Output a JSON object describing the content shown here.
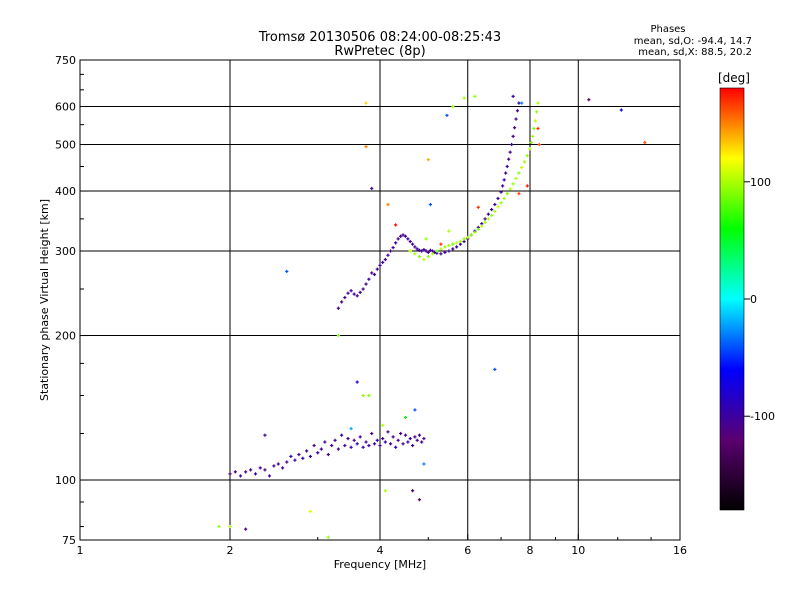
{
  "chart_data": {
    "type": "scatter",
    "title": "Tromsø 20130506 08:24:00-08:25:43",
    "subtitle": "RwPretec (8p)",
    "stats": {
      "heading": "Phases",
      "line_o": "mean, sd,O: -94.4, 14.7",
      "line_x": "mean, sd,X:  88.5, 20.2"
    },
    "xlabel": "Frequency [MHz]",
    "ylabel": "Stationary phase Virtual Height [km]",
    "x_scale": "log",
    "y_scale": "log",
    "xlim": [
      1,
      16
    ],
    "ylim": [
      75,
      750
    ],
    "x_ticks": [
      {
        "value": 1,
        "label": "1"
      },
      {
        "value": 2,
        "label": "2"
      },
      {
        "value": 4,
        "label": "4"
      },
      {
        "value": 6,
        "label": "6"
      },
      {
        "value": 8,
        "label": "8"
      },
      {
        "value": 10,
        "label": "10"
      },
      {
        "value": 16,
        "label": "16"
      }
    ],
    "y_ticks": [
      {
        "value": 75,
        "label": "75"
      },
      {
        "value": 100,
        "label": "100"
      },
      {
        "value": 200,
        "label": "200"
      },
      {
        "value": 300,
        "label": "300"
      },
      {
        "value": 400,
        "label": "400"
      },
      {
        "value": 500,
        "label": "500"
      },
      {
        "value": 600,
        "label": "600"
      },
      {
        "value": 750,
        "label": "750"
      }
    ],
    "grid": true,
    "colorbar": {
      "label": "[deg]",
      "range": [
        -180,
        180
      ],
      "ticks": [
        {
          "value": 100,
          "label": "100"
        },
        {
          "value": 0,
          "label": "0"
        },
        {
          "value": -100,
          "label": "-100"
        }
      ],
      "stops": [
        "#000000",
        "#5a0070",
        "#0000ff",
        "#00ffff",
        "#00ff00",
        "#ffff00",
        "#ff0000"
      ]
    },
    "series": [
      {
        "values": [
          [
            2.0,
            103,
            -110
          ],
          [
            2.05,
            104,
            -105
          ],
          [
            2.1,
            102,
            -100
          ],
          [
            2.15,
            104,
            -112
          ],
          [
            2.2,
            105,
            -108
          ],
          [
            2.25,
            103,
            -95
          ],
          [
            2.3,
            106,
            -104
          ],
          [
            2.35,
            105,
            -110
          ],
          [
            2.4,
            102,
            -101
          ],
          [
            2.45,
            107,
            -106
          ],
          [
            2.5,
            108,
            -98
          ],
          [
            2.55,
            106,
            -103
          ],
          [
            2.6,
            109,
            -110
          ],
          [
            2.65,
            112,
            -88
          ],
          [
            2.7,
            110,
            -102
          ],
          [
            2.75,
            113,
            -107
          ],
          [
            2.8,
            111,
            -95
          ],
          [
            2.85,
            115,
            -105
          ],
          [
            2.9,
            112,
            -100
          ],
          [
            2.95,
            118,
            -110
          ],
          [
            3.0,
            114,
            -92
          ],
          [
            3.05,
            116,
            -104
          ],
          [
            3.1,
            120,
            -101
          ],
          [
            3.15,
            113,
            -108
          ],
          [
            3.2,
            118,
            -99
          ],
          [
            3.25,
            121,
            -106
          ],
          [
            3.3,
            116,
            -103
          ],
          [
            3.35,
            124,
            -95
          ],
          [
            3.4,
            118,
            -110
          ],
          [
            3.45,
            122,
            -105
          ],
          [
            3.5,
            117,
            -100
          ],
          [
            3.55,
            121,
            -108
          ],
          [
            3.6,
            119,
            -97
          ],
          [
            3.65,
            123,
            -104
          ],
          [
            3.7,
            117,
            -101
          ],
          [
            3.75,
            120,
            -109
          ],
          [
            3.8,
            118,
            -99
          ],
          [
            3.85,
            125,
            -106
          ],
          [
            3.9,
            119,
            -102
          ],
          [
            3.95,
            121,
            -95
          ],
          [
            4.0,
            118,
            -107
          ],
          [
            4.05,
            122,
            -104
          ],
          [
            4.1,
            120,
            -99
          ],
          [
            4.15,
            126,
            -108
          ],
          [
            4.2,
            119,
            -101
          ],
          [
            4.25,
            123,
            -105
          ],
          [
            4.3,
            117,
            -96
          ],
          [
            4.35,
            121,
            -103
          ],
          [
            4.4,
            125,
            -109
          ],
          [
            4.45,
            119,
            -100
          ],
          [
            4.5,
            124,
            -106
          ],
          [
            4.55,
            120,
            -102
          ],
          [
            4.6,
            122,
            -94
          ],
          [
            4.65,
            118,
            -107
          ],
          [
            4.7,
            123,
            -104
          ],
          [
            4.75,
            121,
            -110
          ],
          [
            4.8,
            124,
            -99
          ],
          [
            4.85,
            120,
            -103
          ],
          [
            4.9,
            122,
            -108
          ]
        ]
      },
      {
        "values": [
          [
            3.3,
            228,
            -105
          ],
          [
            3.35,
            235,
            -110
          ],
          [
            3.4,
            240,
            -100
          ],
          [
            3.45,
            245,
            -108
          ],
          [
            3.5,
            248,
            -103
          ],
          [
            3.55,
            244,
            -96
          ],
          [
            3.6,
            242,
            -107
          ],
          [
            3.65,
            246,
            -101
          ],
          [
            3.7,
            250,
            -110
          ],
          [
            3.75,
            256,
            -104
          ],
          [
            3.8,
            262,
            -99
          ],
          [
            3.85,
            270,
            -106
          ],
          [
            3.9,
            268,
            -101
          ],
          [
            3.95,
            275,
            -108
          ],
          [
            4.0,
            280,
            -103
          ],
          [
            4.05,
            284,
            -97
          ],
          [
            4.1,
            288,
            -105
          ],
          [
            4.15,
            294,
            -100
          ],
          [
            4.2,
            300,
            -109
          ],
          [
            4.25,
            305,
            -104
          ],
          [
            4.3,
            312,
            -98
          ],
          [
            4.35,
            318,
            -106
          ],
          [
            4.4,
            322,
            -102
          ],
          [
            4.45,
            324,
            -110
          ],
          [
            4.5,
            322,
            -103
          ],
          [
            4.55,
            318,
            -96
          ],
          [
            4.6,
            314,
            -105
          ],
          [
            4.65,
            310,
            -100
          ],
          [
            4.7,
            306,
            -108
          ],
          [
            4.75,
            303,
            -103
          ],
          [
            4.8,
            301,
            -99
          ],
          [
            4.85,
            300,
            -106
          ],
          [
            4.9,
            302,
            -101
          ],
          [
            4.95,
            300,
            -109
          ],
          [
            5.0,
            298,
            -104
          ],
          [
            5.05,
            301,
            -100
          ],
          [
            5.1,
            300,
            -107
          ],
          [
            5.15,
            298,
            -102
          ],
          [
            5.2,
            297,
            -96
          ],
          [
            5.3,
            296,
            -105
          ],
          [
            5.4,
            298,
            -101
          ],
          [
            5.5,
            300,
            -108
          ],
          [
            5.6,
            303,
            -103
          ],
          [
            5.7,
            306,
            -97
          ],
          [
            5.8,
            310,
            -106
          ],
          [
            5.9,
            314,
            -101
          ],
          [
            6.0,
            318,
            -109
          ],
          [
            6.1,
            324,
            -104
          ],
          [
            6.2,
            330,
            -99
          ],
          [
            6.3,
            336,
            -106
          ],
          [
            6.4,
            342,
            -101
          ],
          [
            6.5,
            350,
            -108
          ],
          [
            6.6,
            358,
            -103
          ],
          [
            6.7,
            366,
            -97
          ],
          [
            6.8,
            375,
            -105
          ],
          [
            6.9,
            386,
            -100
          ],
          [
            7.0,
            398,
            -108
          ],
          [
            7.05,
            410,
            -103
          ],
          [
            7.1,
            422,
            -96
          ],
          [
            7.15,
            436,
            -105
          ],
          [
            7.2,
            450,
            -100
          ],
          [
            7.25,
            466,
            -108
          ],
          [
            7.3,
            482,
            -103
          ],
          [
            7.35,
            500,
            -98
          ],
          [
            7.4,
            520,
            -106
          ],
          [
            7.45,
            542,
            -101
          ],
          [
            7.5,
            565,
            -109
          ],
          [
            7.55,
            588,
            -104
          ],
          [
            7.6,
            610,
            -99
          ]
        ]
      },
      {
        "values": [
          [
            4.6,
            300,
            95
          ],
          [
            4.7,
            296,
            100
          ],
          [
            4.8,
            292,
            90
          ],
          [
            4.9,
            288,
            105
          ],
          [
            5.0,
            292,
            92
          ],
          [
            5.1,
            296,
            98
          ],
          [
            5.2,
            300,
            88
          ],
          [
            5.3,
            303,
            102
          ],
          [
            5.4,
            306,
            94
          ],
          [
            5.5,
            308,
            100
          ],
          [
            5.6,
            310,
            86
          ],
          [
            5.7,
            312,
            104
          ],
          [
            5.8,
            314,
            96
          ],
          [
            5.9,
            318,
            90
          ],
          [
            6.0,
            320,
            101
          ],
          [
            6.1,
            324,
            93
          ],
          [
            6.2,
            328,
            99
          ],
          [
            6.3,
            333,
            87
          ],
          [
            6.4,
            338,
            103
          ],
          [
            6.5,
            344,
            95
          ],
          [
            6.6,
            350,
            100
          ],
          [
            6.7,
            356,
            91
          ],
          [
            6.8,
            363,
            97
          ],
          [
            6.9,
            371,
            105
          ],
          [
            7.0,
            378,
            92
          ],
          [
            7.1,
            386,
            98
          ],
          [
            7.2,
            395,
            88
          ],
          [
            7.3,
            404,
            102
          ],
          [
            7.4,
            414,
            94
          ],
          [
            7.5,
            425,
            100
          ],
          [
            7.6,
            436,
            90
          ],
          [
            7.7,
            448,
            104
          ],
          [
            7.8,
            460,
            96
          ],
          [
            7.9,
            474,
            92
          ],
          [
            8.0,
            490,
            101
          ],
          [
            8.05,
            505,
            95
          ],
          [
            8.1,
            520,
            99
          ],
          [
            8.15,
            540,
            88
          ],
          [
            8.2,
            560,
            103
          ],
          [
            8.25,
            585,
            94
          ],
          [
            8.3,
            610,
            100
          ]
        ]
      },
      {
        "values": [
          [
            1.9,
            80,
            95
          ],
          [
            2.0,
            80,
            100
          ],
          [
            2.15,
            79,
            -110
          ],
          [
            2.35,
            124,
            -105
          ],
          [
            2.6,
            272,
            -40
          ],
          [
            2.9,
            86,
            110
          ],
          [
            3.15,
            76,
            95
          ],
          [
            3.3,
            200,
            90
          ],
          [
            3.5,
            128,
            -20
          ],
          [
            3.6,
            160,
            -80
          ],
          [
            3.7,
            150,
            95
          ],
          [
            3.75,
            610,
            130
          ],
          [
            3.75,
            495,
            150
          ],
          [
            3.8,
            150,
            90
          ],
          [
            3.85,
            405,
            -105
          ],
          [
            4.05,
            130,
            100
          ],
          [
            4.1,
            95,
            100
          ],
          [
            4.15,
            375,
            150
          ],
          [
            4.3,
            340,
            180
          ],
          [
            4.5,
            135,
            60
          ],
          [
            4.6,
            300,
            105
          ],
          [
            4.65,
            95,
            -110
          ],
          [
            4.7,
            140,
            -40
          ],
          [
            4.8,
            91,
            -120
          ],
          [
            4.9,
            108,
            -30
          ],
          [
            5.0,
            465,
            140
          ],
          [
            5.05,
            375,
            -40
          ],
          [
            5.3,
            310,
            170
          ],
          [
            5.45,
            575,
            -40
          ],
          [
            5.6,
            600,
            95
          ],
          [
            5.9,
            625,
            100
          ],
          [
            6.2,
            630,
            95
          ],
          [
            6.8,
            170,
            -40
          ],
          [
            7.4,
            630,
            -100
          ],
          [
            7.7,
            610,
            -30
          ],
          [
            8.3,
            540,
            170
          ],
          [
            8.35,
            500,
            160
          ],
          [
            10.5,
            620,
            -120
          ],
          [
            12.2,
            590,
            -70
          ],
          [
            13.6,
            505,
            160
          ],
          [
            7.9,
            410,
            175
          ],
          [
            7.6,
            395,
            165
          ],
          [
            5.5,
            330,
            100
          ],
          [
            6.3,
            370,
            170
          ],
          [
            4.95,
            318,
            95
          ]
        ]
      }
    ]
  }
}
